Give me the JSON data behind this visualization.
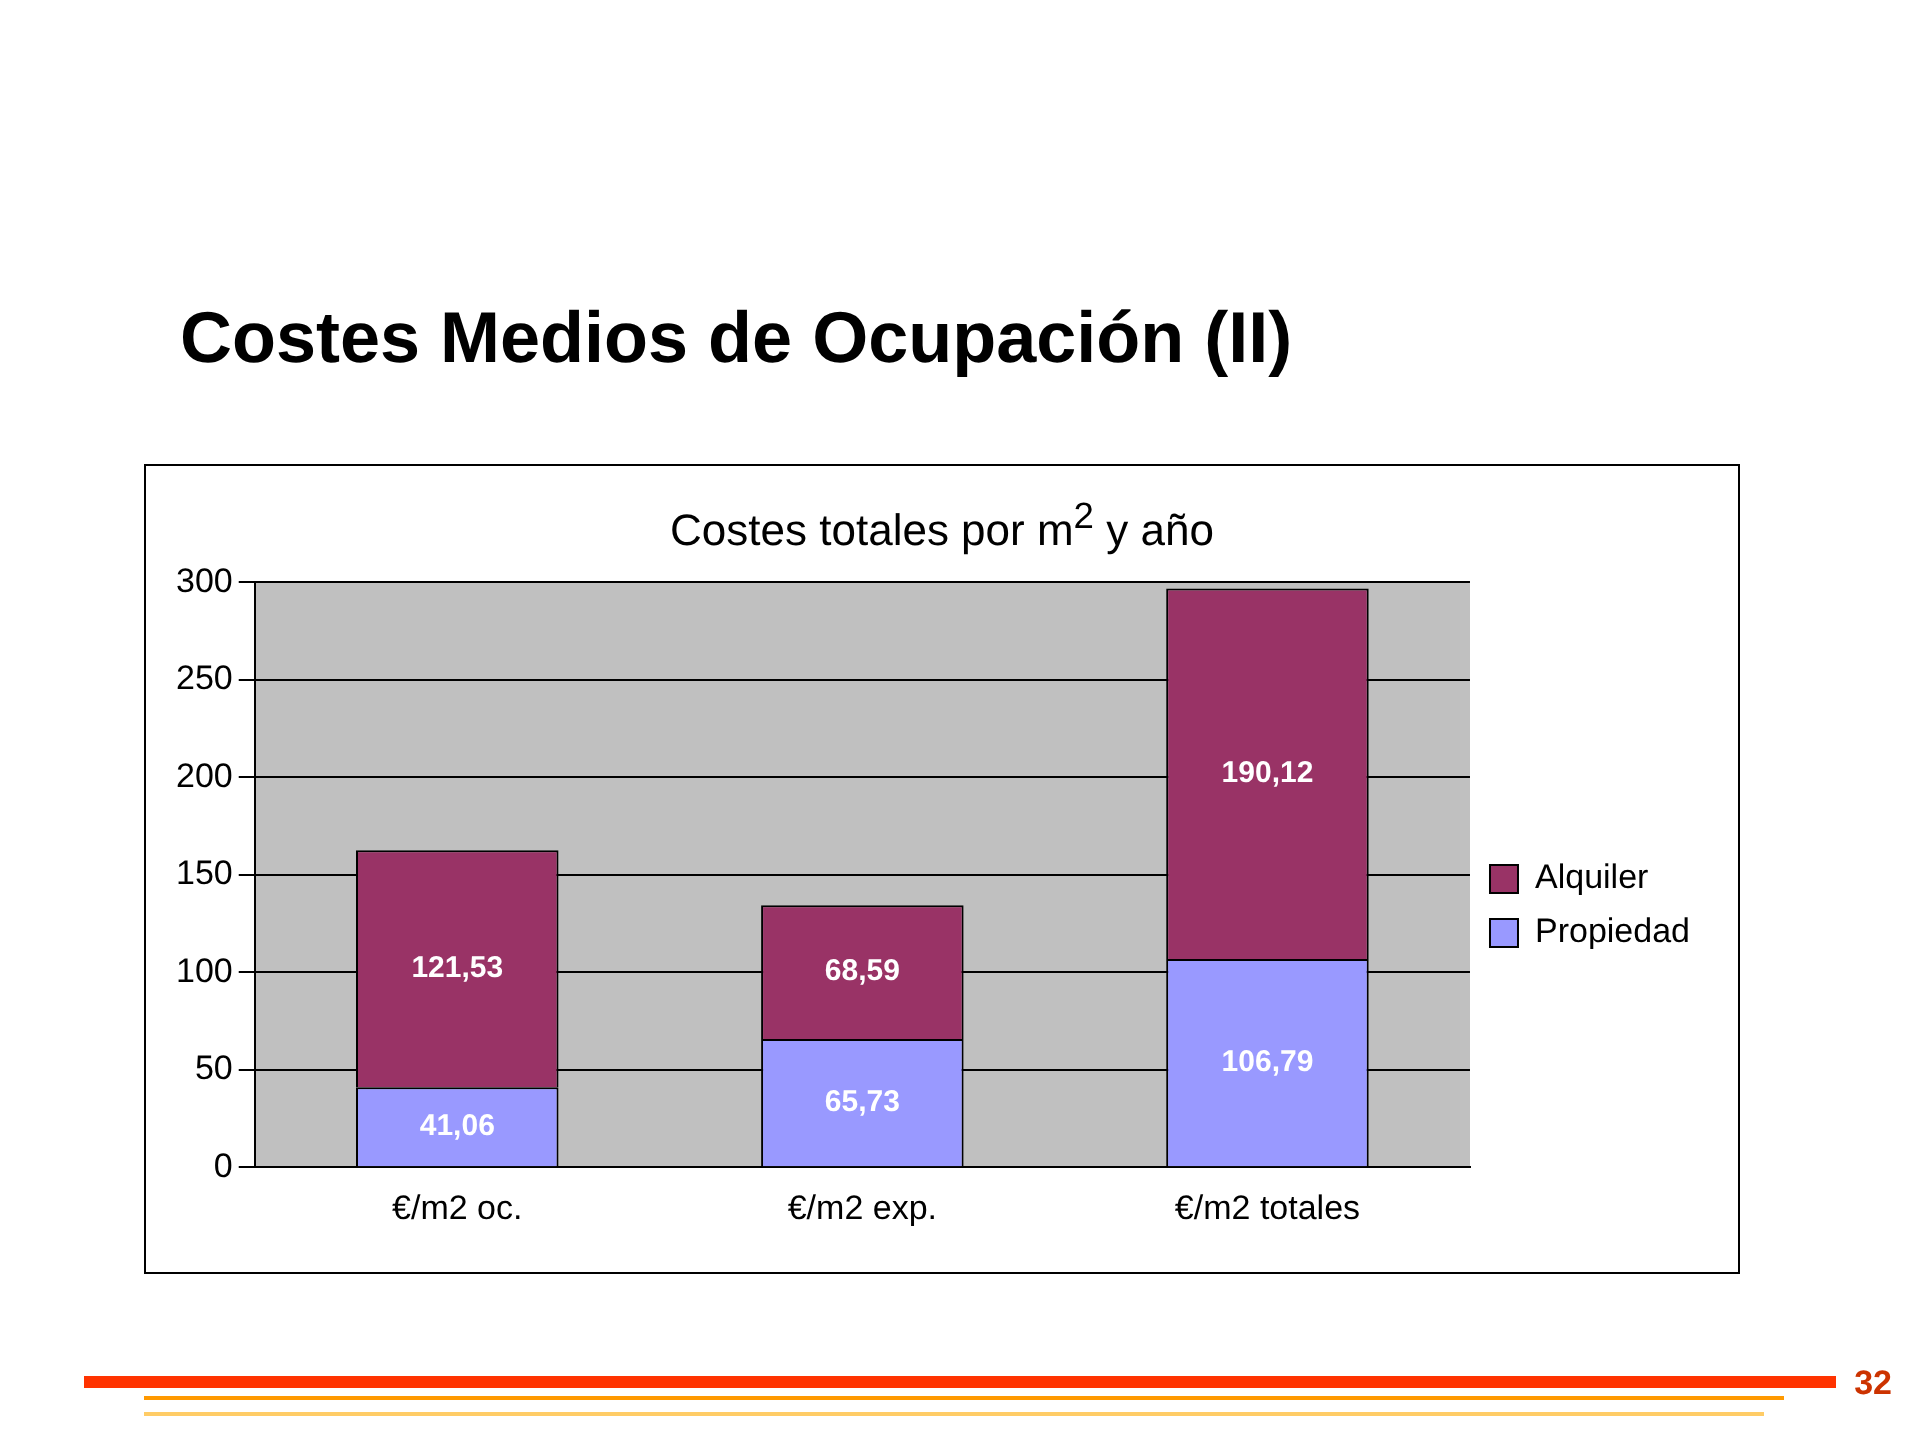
{
  "chart_data": {
    "type": "bar",
    "title": "Costes Medios de Ocupación (II)",
    "subtitle": "Costes totales por m$^{2}$ y año",
    "categories": [
      "€/m2 oc.",
      "€/m2 exp.",
      "€/m2 totales"
    ],
    "stacked": true,
    "series": [
      {
        "name": "Propiedad",
        "color": "#9999ff",
        "values": [
          41.06,
          65.73,
          106.79
        ],
        "value_labels": [
          "41,06",
          "65,73",
          "106,79"
        ]
      },
      {
        "name": "Alquiler",
        "color": "#993366",
        "values": [
          121.53,
          68.59,
          190.12
        ],
        "value_labels": [
          "121,53",
          "68,59",
          "190,12"
        ]
      }
    ],
    "ylim": [
      0,
      300
    ],
    "yticks": [
      0,
      50,
      100,
      150,
      200,
      250,
      300
    ],
    "grid": "y",
    "legend": "right",
    "annotations": [
      "32"
    ]
  }
}
